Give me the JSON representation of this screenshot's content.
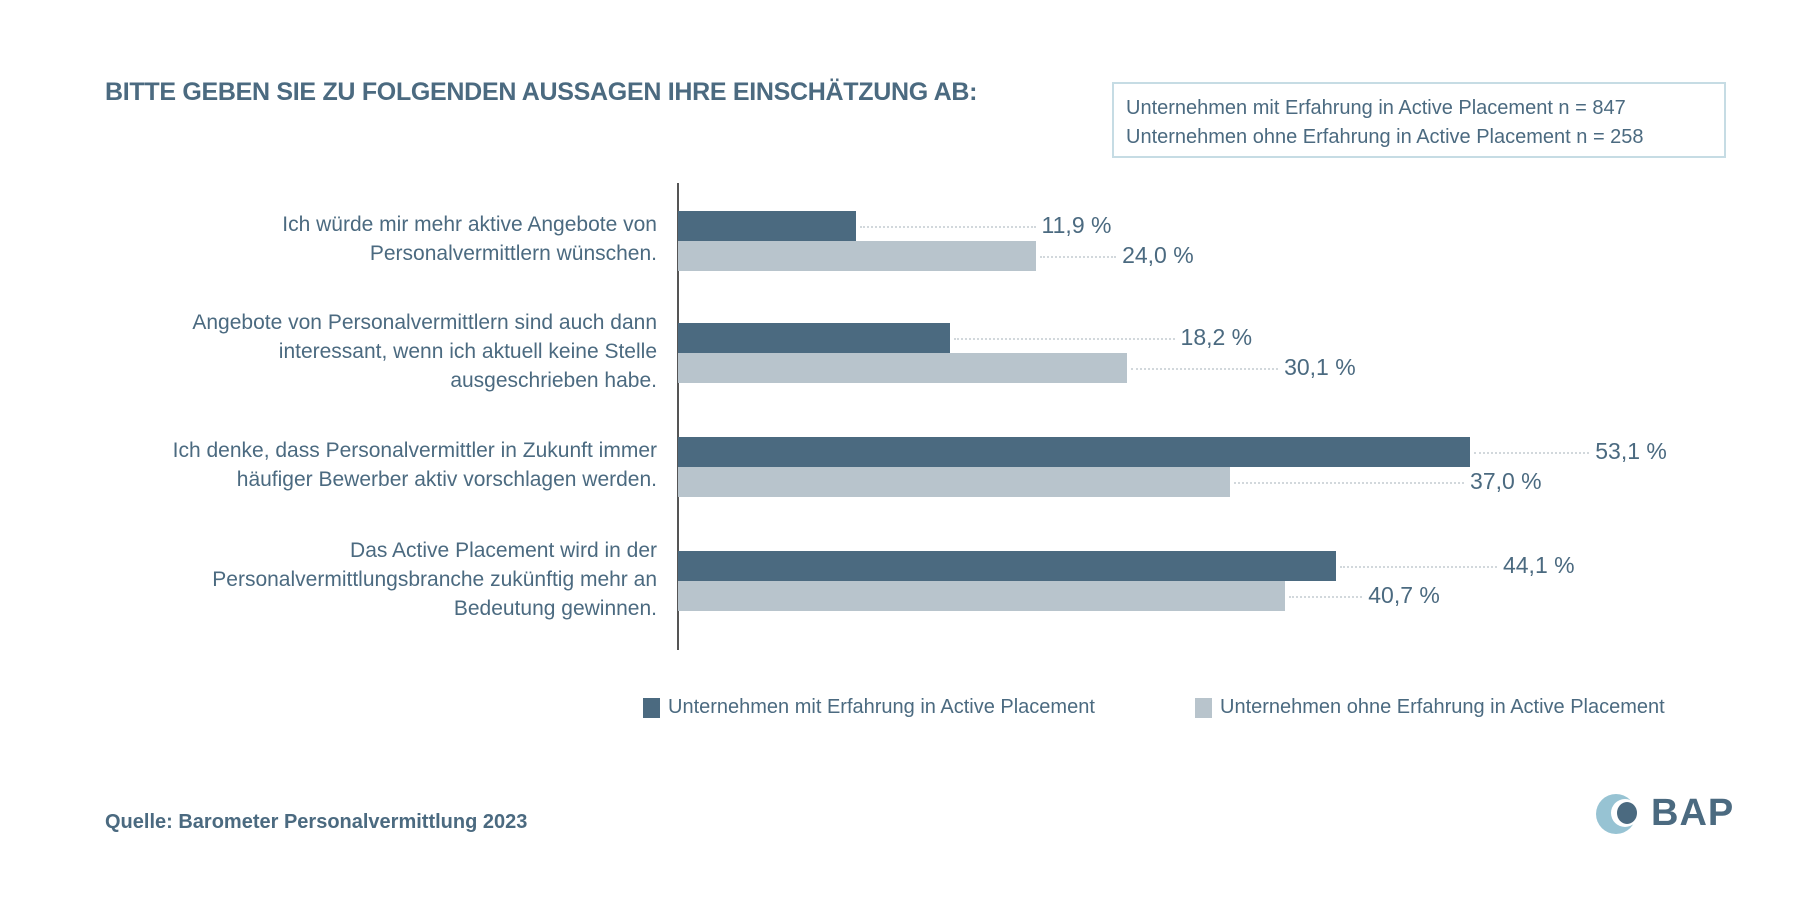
{
  "colors": {
    "series1": "#4b6a80",
    "series2": "#b8c4cc",
    "text": "#4b6a80",
    "box_border": "#c6dce4",
    "logo_light": "#97c3d3"
  },
  "header": {
    "title": "BITTE GEBEN SIE ZU FOLGENDEN AUSSAGEN IHRE EINSCHÄTZUNG AB:"
  },
  "sample_box": {
    "line1": "Unternehmen mit Erfahrung in Active Placement n = 847",
    "line2": "Unternehmen ohne Erfahrung in Active Placement n = 258"
  },
  "chart_data": {
    "type": "bar",
    "orientation": "horizontal",
    "title": "BITTE GEBEN SIE ZU FOLGENDEN AUSSAGEN IHRE EINSCHÄTZUNG AB:",
    "categories": [
      [
        "Ich würde mir mehr aktive Angebote von",
        "Personalvermittlern wünschen."
      ],
      [
        "Angebote von Personalvermittlern sind auch dann",
        "interessant, wenn ich aktuell keine Stelle",
        "ausgeschrieben habe."
      ],
      [
        "Ich denke, dass Personalvermittler in Zukunft immer",
        "häufiger Bewerber aktiv vorschlagen werden."
      ],
      [
        "Das Active Placement wird in der",
        "Personalvermittlungsbranche zukünftig mehr an",
        "Bedeutung gewinnen."
      ]
    ],
    "series": [
      {
        "name": "Unternehmen mit Erfahrung in Active Placement",
        "values": [
          11.9,
          18.2,
          53.1,
          44.1
        ],
        "labels": [
          "11,9 %",
          "18,2 %",
          "53,1 %",
          "44,1 %"
        ]
      },
      {
        "name": "Unternehmen ohne Erfahrung in Active Placement",
        "values": [
          24.0,
          30.1,
          37.0,
          40.7
        ],
        "labels": [
          "24,0 %",
          "30,1 %",
          "37,0 %",
          "40,7 %"
        ]
      }
    ],
    "unit": "%",
    "grid": false,
    "legend_position": "bottom-right"
  },
  "legend": {
    "item1": "Unternehmen mit Erfahrung in Active Placement",
    "item2": "Unternehmen ohne Erfahrung in Active Placement"
  },
  "footer": {
    "source": "Quelle: Barometer Personalvermittlung 2023",
    "logo_text": "BAP"
  }
}
